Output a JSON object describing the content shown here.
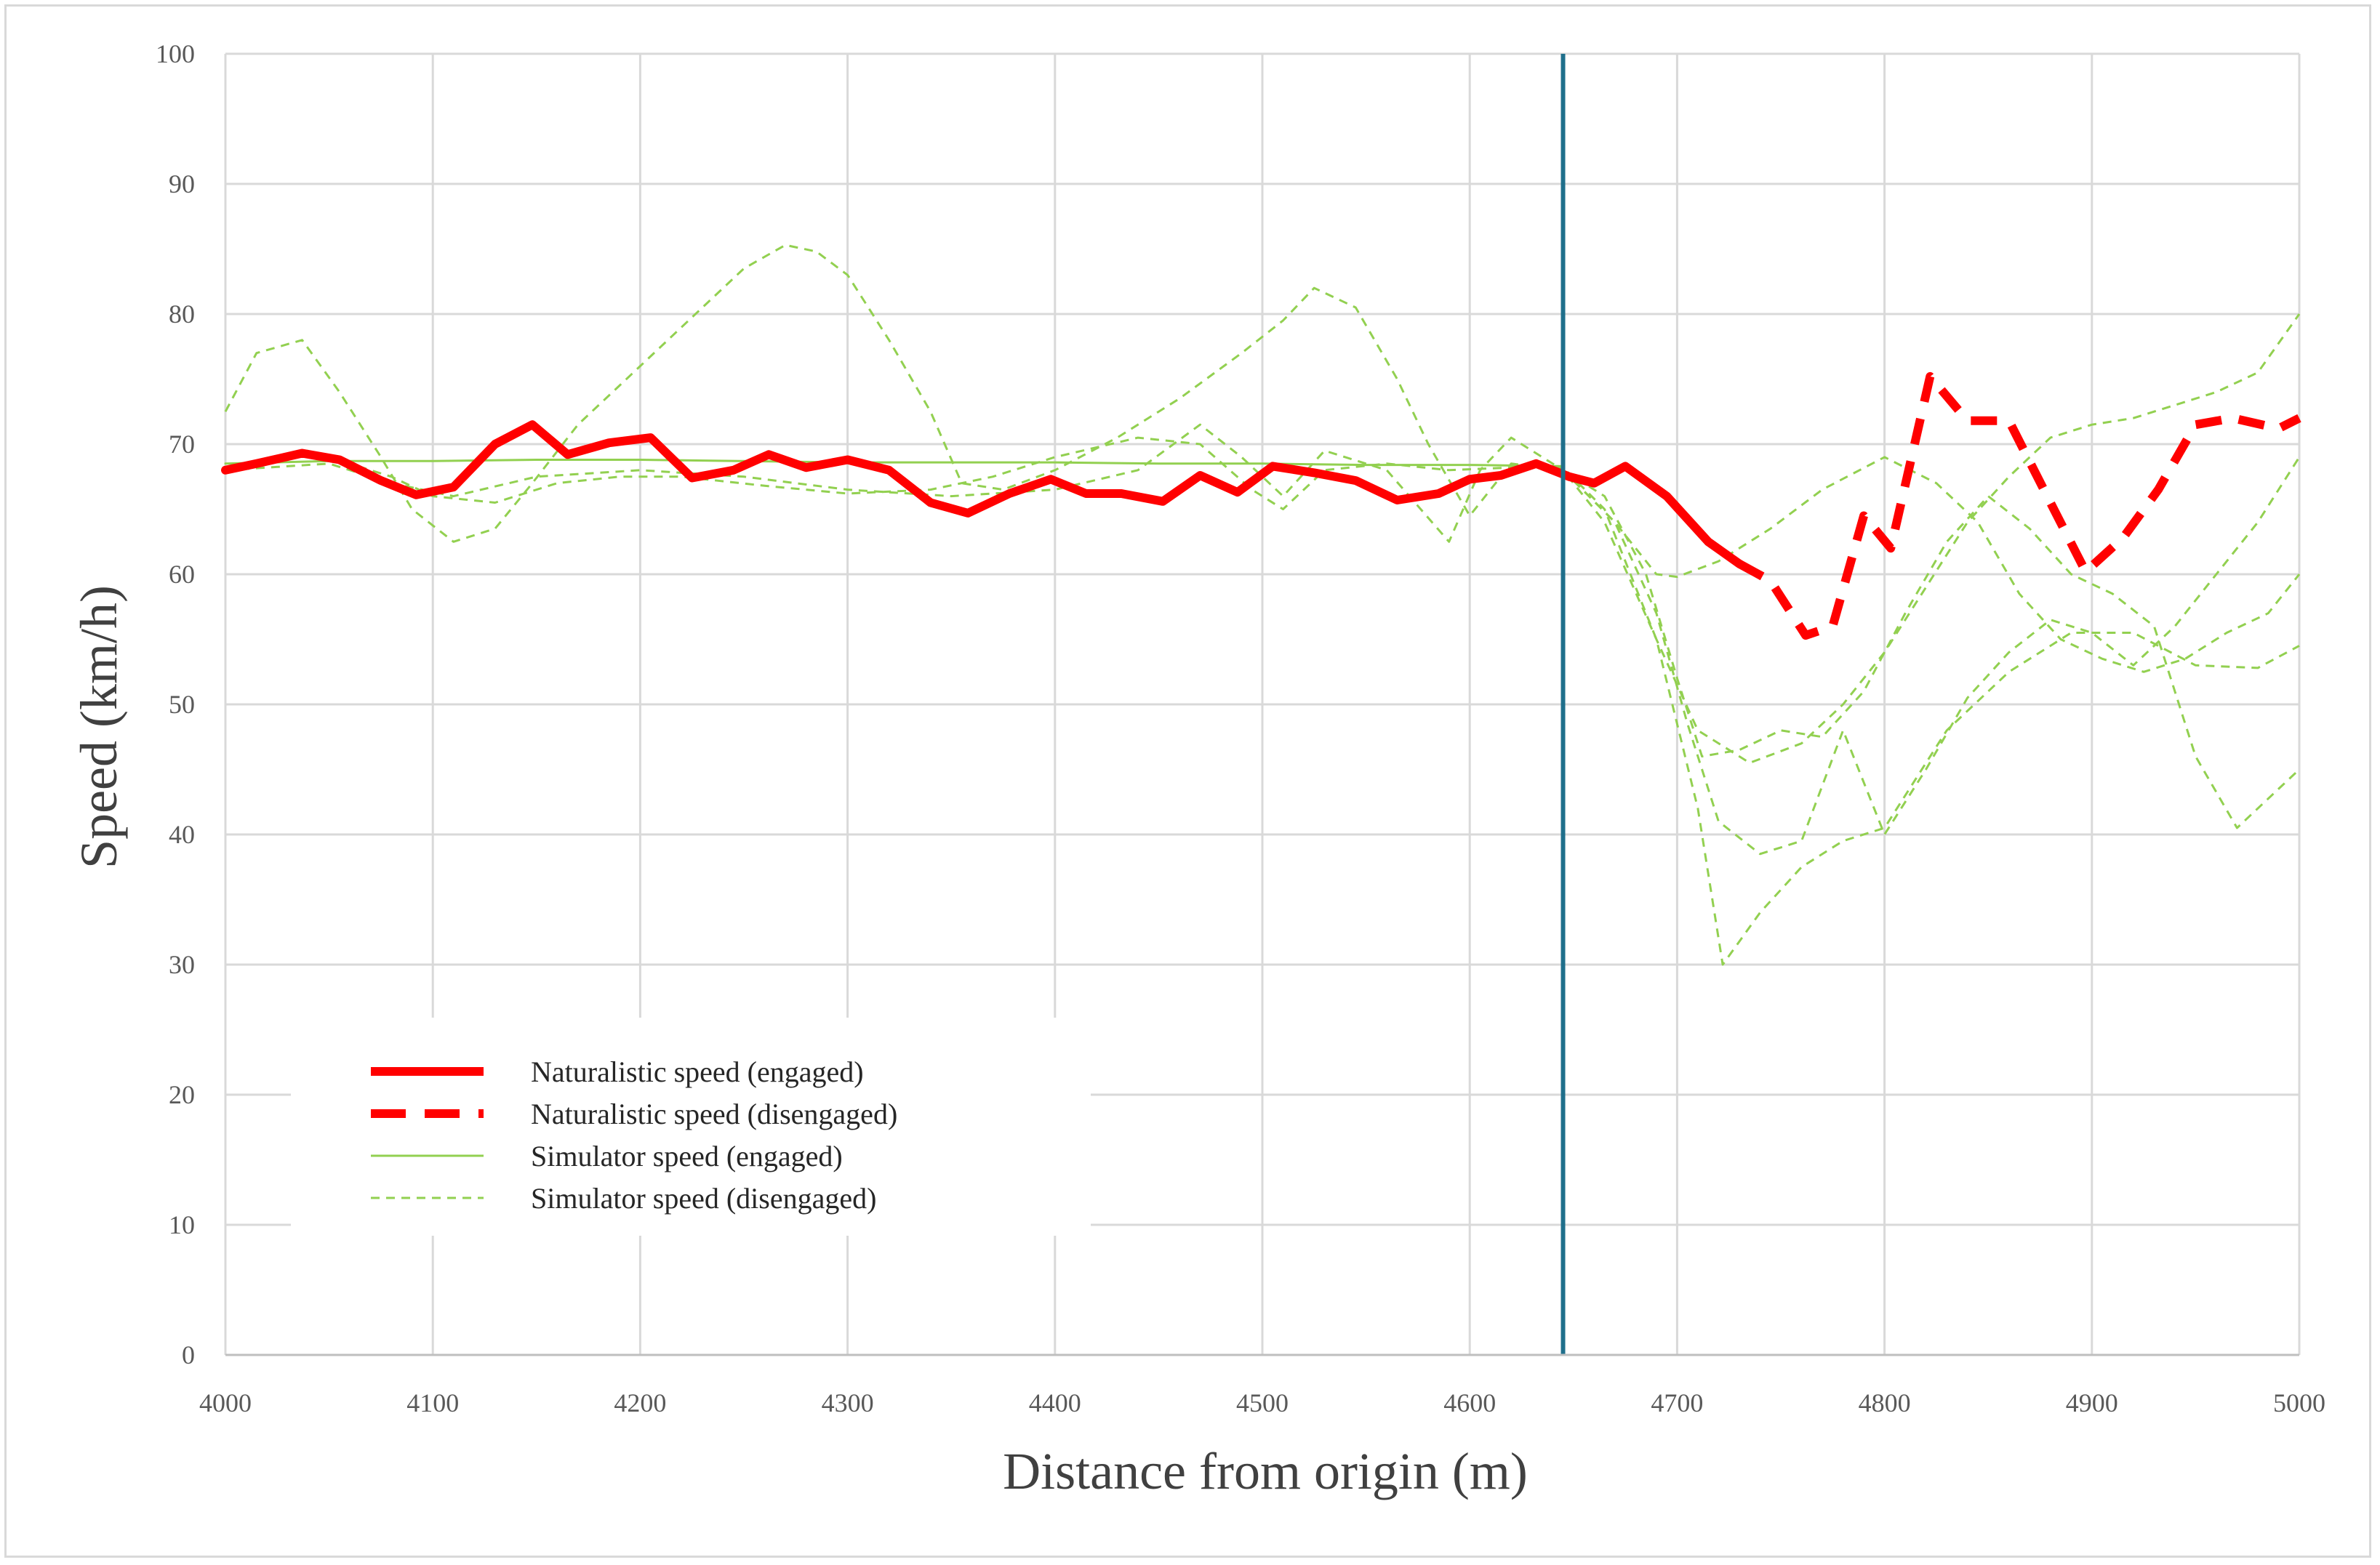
{
  "chart_data": {
    "type": "line",
    "title": "",
    "xlabel": "Distance from origin (m)",
    "ylabel": "Speed (km/h)",
    "xlim": [
      4000,
      5000
    ],
    "ylim": [
      0,
      100
    ],
    "x_ticks": [
      "4000",
      "4100",
      "4200",
      "4300",
      "4400",
      "4500",
      "4600",
      "4700",
      "4800",
      "4900",
      "5000"
    ],
    "y_ticks": [
      "0",
      "10",
      "20",
      "30",
      "40",
      "50",
      "60",
      "70",
      "80",
      "90",
      "100"
    ],
    "grid": true,
    "legend_position": "bottom-left",
    "vertical_marker_x": 4645,
    "colors": {
      "naturalistic": "#ff0000",
      "simulator": "#92d050",
      "marker": "#1f6f8b",
      "grid": "#d9d9d9"
    },
    "legend": [
      {
        "label": "Naturalistic speed (engaged)",
        "style": "thick-solid-red"
      },
      {
        "label": "Naturalistic speed (disengaged)",
        "style": "thick-dashed-red"
      },
      {
        "label": "Simulator speed (engaged)",
        "style": "thin-solid-green"
      },
      {
        "label": "Simulator speed (disengaged)",
        "style": "thin-dashed-green"
      }
    ],
    "series": [
      {
        "name": "Naturalistic speed (engaged)",
        "style": "thick-solid-red",
        "x": [
          4000,
          4015,
          4037,
          4055,
          4075,
          4092,
          4110,
          4130,
          4148,
          4165,
          4185,
          4205,
          4225,
          4245,
          4262,
          4280,
          4300,
          4320,
          4340,
          4358,
          4378,
          4398,
          4415,
          4432,
          4452,
          4470,
          4488,
          4505,
          4525,
          4545,
          4565,
          4585,
          4600,
          4615,
          4632,
          4648,
          4660,
          4675,
          4695,
          4715,
          4730
        ],
        "y": [
          68.0,
          68.5,
          69.3,
          68.8,
          67.2,
          66.1,
          66.7,
          70.0,
          71.5,
          69.2,
          70.1,
          70.5,
          67.4,
          68.0,
          69.2,
          68.2,
          68.8,
          68.0,
          65.5,
          64.7,
          66.2,
          67.3,
          66.2,
          66.2,
          65.6,
          67.6,
          66.3,
          68.3,
          67.8,
          67.2,
          65.7,
          66.2,
          67.3,
          67.6,
          68.5,
          67.5,
          67.0,
          68.3,
          66.0,
          62.5,
          60.8
        ]
      },
      {
        "name": "Naturalistic speed (disengaged)",
        "style": "thick-dashed-red",
        "x": [
          4730,
          4745,
          4762,
          4775,
          4790,
          4803,
          4822,
          4840,
          4860,
          4880,
          4897,
          4915,
          4932,
          4950,
          4968,
          4990,
          5000
        ],
        "y": [
          60.8,
          59.5,
          55.3,
          56.0,
          64.5,
          62.0,
          75.2,
          71.8,
          71.8,
          65.5,
          60.2,
          62.8,
          66.5,
          71.5,
          72.0,
          71.2,
          72.0
        ]
      },
      {
        "name": "Simulator speed (engaged)",
        "style": "thin-solid-green",
        "x": [
          4000,
          4050,
          4100,
          4150,
          4200,
          4250,
          4300,
          4350,
          4400,
          4450,
          4500,
          4550,
          4600,
          4645
        ],
        "y": [
          68.5,
          68.7,
          68.7,
          68.8,
          68.8,
          68.7,
          68.6,
          68.6,
          68.6,
          68.5,
          68.5,
          68.4,
          68.4,
          68.3
        ]
      },
      {
        "name": "Simulator speed (disengaged)",
        "style": "thin-dashed-green",
        "x": [
          4000,
          4015,
          4037,
          4055,
          4075,
          4090,
          4110,
          4130,
          4148,
          4170,
          4190,
          4210,
          4230,
          4250,
          4270,
          4285,
          4300,
          4320,
          4340,
          4355,
          4375,
          4400,
          4430,
          4460,
          4490,
          4510,
          4525,
          4545,
          4565,
          4580,
          4600,
          4620,
          4645,
          4665,
          4690,
          4710,
          4735,
          4760,
          4780,
          4800,
          4820,
          4840,
          4860,
          4880,
          4900,
          4920,
          4940,
          4960,
          4980,
          5000
        ],
        "y": [
          72.5,
          77.0,
          78.0,
          74.0,
          69.0,
          65.0,
          62.5,
          63.5,
          67.0,
          71.5,
          74.5,
          77.5,
          80.5,
          83.5,
          85.3,
          84.8,
          83.0,
          78.0,
          72.5,
          67.0,
          66.5,
          68.0,
          70.5,
          73.5,
          77.0,
          79.5,
          82.0,
          80.5,
          75.0,
          70.0,
          64.5,
          68.5,
          68.0,
          64.0,
          55.0,
          48.0,
          45.5,
          47.0,
          50.0,
          54.0,
          59.0,
          64.0,
          67.5,
          70.5,
          71.5,
          72.0,
          73.0,
          74.0,
          75.5,
          80.0
        ]
      },
      {
        "name": "",
        "style": "thin-dashed-green",
        "x": [
          4000,
          4040,
          4080,
          4100,
          4130,
          4160,
          4190,
          4220,
          4260,
          4300,
          4340,
          4370,
          4400,
          4440,
          4470,
          4495,
          4510,
          4530,
          4560,
          4590,
          4620,
          4645,
          4665,
          4690,
          4710,
          4722,
          4740,
          4760,
          4780,
          4800,
          4830,
          4860,
          4890,
          4920,
          4950,
          4980,
          5000
        ],
        "y": [
          68.0,
          69.5,
          67.5,
          66.0,
          65.5,
          67.0,
          67.5,
          67.5,
          66.8,
          66.2,
          66.5,
          67.5,
          69.0,
          70.5,
          70.0,
          66.5,
          65.0,
          68.0,
          68.5,
          68.0,
          68.2,
          68.2,
          65.0,
          55.0,
          42.0,
          30.0,
          34.0,
          37.5,
          39.5,
          40.5,
          48.0,
          52.5,
          55.5,
          55.5,
          53.0,
          52.8,
          54.5
        ]
      },
      {
        "name": "",
        "style": "thin-dashed-green",
        "x": [
          4645,
          4670,
          4690,
          4705,
          4720,
          4740,
          4760,
          4780,
          4800,
          4820,
          4840,
          4860,
          4880,
          4900,
          4920,
          4940,
          4960,
          4980,
          5000
        ],
        "y": [
          68.0,
          64.0,
          57.0,
          48.5,
          41.0,
          38.5,
          39.5,
          48.0,
          40.0,
          45.0,
          50.5,
          54.0,
          56.5,
          55.5,
          53.0,
          56.0,
          60.0,
          64.0,
          69.0
        ]
      },
      {
        "name": "",
        "style": "thin-dashed-green",
        "x": [
          4645,
          4665,
          4685,
          4700,
          4712,
          4730,
          4750,
          4770,
          4790,
          4810,
          4830,
          4850,
          4870,
          4890,
          4910,
          4930,
          4950,
          4970,
          5000
        ],
        "y": [
          68.0,
          66.0,
          60.0,
          52.0,
          46.0,
          46.5,
          48.0,
          47.5,
          51.0,
          57.0,
          62.5,
          66.0,
          63.5,
          60.0,
          58.5,
          56.0,
          46.0,
          40.5,
          45.0
        ]
      },
      {
        "name": "",
        "style": "thin-dashed-green",
        "x": [
          4645,
          4670,
          4690,
          4700,
          4720,
          4745,
          4770,
          4800,
          4825,
          4845,
          4865,
          4885,
          4905,
          4925,
          4945,
          4965,
          4985,
          5000
        ],
        "y": [
          68.0,
          64.0,
          60.0,
          59.8,
          61.0,
          63.5,
          66.5,
          69.0,
          67.0,
          64.0,
          58.5,
          55.0,
          53.5,
          52.5,
          53.5,
          55.5,
          57.0,
          60.0
        ]
      },
      {
        "name": "",
        "style": "thin-dashed-green",
        "x": [
          4000,
          4050,
          4080,
          4110,
          4150,
          4200,
          4250,
          4300,
          4350,
          4400,
          4440,
          4470,
          4490,
          4510,
          4530,
          4560,
          4590,
          4605,
          4620,
          4645
        ],
        "y": [
          68.0,
          68.5,
          67.0,
          66.0,
          67.5,
          68.0,
          67.5,
          66.5,
          66.0,
          66.5,
          68.0,
          71.5,
          69.0,
          66.0,
          69.5,
          68.0,
          62.5,
          68.0,
          70.5,
          68.0
        ]
      }
    ]
  }
}
